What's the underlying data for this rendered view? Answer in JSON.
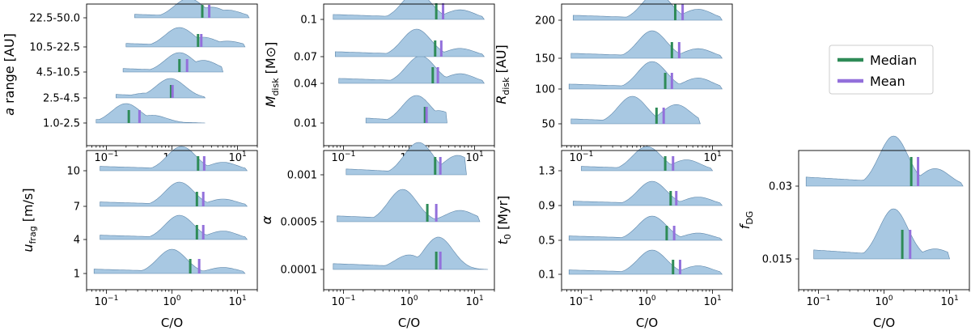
{
  "chart_data": {
    "type": "ridgeline",
    "x_scale": "log",
    "xlim": [
      0.05,
      20
    ],
    "x_ticks": [
      {
        "v": 0.1,
        "b": "10",
        "e": "−1"
      },
      {
        "v": 1,
        "b": "10",
        "e": "0"
      },
      {
        "v": 10,
        "b": "10",
        "e": "1"
      }
    ],
    "xlabel": "C/O",
    "legend": {
      "position": "right",
      "median_label": "Median",
      "mean_label": "Mean",
      "median_color": "#2e8b57",
      "mean_color": "#9370db"
    },
    "ridge_color": "#a8c8e2",
    "panels": [
      {
        "id": "a-range",
        "ylabel": "a range [AU]",
        "yl_main": "a",
        "yl_rest": "range [AU]",
        "categories": [
          {
            "label": "1.0-2.5",
            "min": 0.07,
            "max": 3.2,
            "median": 0.22,
            "mean": 0.32,
            "peaks": [
              [
                0.2,
                1.0
              ],
              [
                0.5,
                0.4
              ]
            ]
          },
          {
            "label": "2.5-4.5",
            "min": 0.14,
            "max": 3.2,
            "median": 0.97,
            "mean": 1.02,
            "peaks": [
              [
                0.4,
                0.25
              ],
              [
                0.95,
                1.0
              ]
            ]
          },
          {
            "label": "4.5-10.5",
            "min": 0.18,
            "max": 6.0,
            "median": 1.3,
            "mean": 1.7,
            "peaks": [
              [
                1.3,
                1.0
              ],
              [
                3.0,
                0.6
              ]
            ]
          },
          {
            "label": "10.5-22.5",
            "min": 0.2,
            "max": 13,
            "median": 2.5,
            "mean": 2.8,
            "peaks": [
              [
                1.3,
                1.0
              ],
              [
                3.0,
                0.5
              ],
              [
                7.0,
                0.3
              ]
            ]
          },
          {
            "label": "22.5-50.0",
            "min": 0.27,
            "max": 15,
            "median": 2.9,
            "mean": 3.7,
            "peaks": [
              [
                1.8,
                1.0
              ],
              [
                4.0,
                0.55
              ],
              [
                7.0,
                0.4
              ]
            ]
          }
        ]
      },
      {
        "id": "mdisk",
        "ylabel": "Mdisk [M⊙]",
        "yl_main": "M",
        "yl_sub": "disk",
        "yl_rest": " [M⊙]",
        "categories": [
          {
            "label": "0.01",
            "min": 0.22,
            "max": 3.8,
            "median": 1.75,
            "mean": 1.85,
            "peaks": [
              [
                1.3,
                1.0
              ],
              [
                2.8,
                0.45
              ]
            ]
          },
          {
            "label": "0.04",
            "min": 0.085,
            "max": 14,
            "median": 2.3,
            "mean": 2.75,
            "peaks": [
              [
                1.5,
                1.0
              ],
              [
                6.0,
                0.35
              ]
            ]
          },
          {
            "label": "0.07",
            "min": 0.075,
            "max": 14,
            "median": 2.5,
            "mean": 3.1,
            "peaks": [
              [
                1.3,
                1.0
              ],
              [
                6.0,
                0.3
              ]
            ]
          },
          {
            "label": "0.1",
            "min": 0.07,
            "max": 14,
            "median": 2.6,
            "mean": 3.3,
            "peaks": [
              [
                1.3,
                1.0
              ],
              [
                6.0,
                0.35
              ]
            ]
          }
        ]
      },
      {
        "id": "rdisk",
        "ylabel": "Rdisk [AU]",
        "yl_main": "R",
        "yl_sub": "disk",
        "yl_rest": " [AU]",
        "categories": [
          {
            "label": "50",
            "min": 0.07,
            "max": 6.5,
            "median": 1.4,
            "mean": 1.8,
            "peaks": [
              [
                0.6,
                1.0
              ],
              [
                2.8,
                0.7
              ]
            ]
          },
          {
            "label": "100",
            "min": 0.065,
            "max": 14,
            "median": 1.9,
            "mean": 2.4,
            "peaks": [
              [
                1.2,
                1.0
              ],
              [
                6.0,
                0.4
              ]
            ]
          },
          {
            "label": "150",
            "min": 0.07,
            "max": 14,
            "median": 2.4,
            "mean": 3.1,
            "peaks": [
              [
                1.2,
                1.0
              ],
              [
                6.0,
                0.35
              ]
            ]
          },
          {
            "label": "200",
            "min": 0.075,
            "max": 14,
            "median": 2.7,
            "mean": 3.5,
            "peaks": [
              [
                1.4,
                1.0
              ],
              [
                6.0,
                0.4
              ]
            ]
          }
        ]
      },
      {
        "id": "ufrag",
        "ylabel": "ufrag [m/s]",
        "yl_main": "u",
        "yl_sub": "frag",
        "yl_rest": " [m/s]",
        "categories": [
          {
            "label": "1",
            "min": 0.065,
            "max": 13,
            "median": 1.9,
            "mean": 2.6,
            "peaks": [
              [
                1.0,
                1.0
              ],
              [
                6.0,
                0.25
              ]
            ]
          },
          {
            "label": "4",
            "min": 0.08,
            "max": 14,
            "median": 2.4,
            "mean": 3.0,
            "peaks": [
              [
                1.3,
                1.0
              ],
              [
                6.0,
                0.35
              ]
            ]
          },
          {
            "label": "7",
            "min": 0.08,
            "max": 14,
            "median": 2.4,
            "mean": 3.0,
            "peaks": [
              [
                1.3,
                1.0
              ],
              [
                6.0,
                0.3
              ]
            ]
          },
          {
            "label": "10",
            "min": 0.08,
            "max": 14,
            "median": 2.5,
            "mean": 3.1,
            "peaks": [
              [
                1.4,
                1.0
              ],
              [
                6.0,
                0.35
              ]
            ]
          }
        ]
      },
      {
        "id": "alpha",
        "ylabel": "α",
        "yl_main": "α",
        "yl_rest": "",
        "categories": [
          {
            "label": "0.0001",
            "min": 0.07,
            "max": 16,
            "median": 2.6,
            "mean": 3.0,
            "peaks": [
              [
                1.0,
                0.45
              ],
              [
                2.8,
                1.0
              ]
            ]
          },
          {
            "label": "0.0005",
            "min": 0.08,
            "max": 12,
            "median": 1.9,
            "mean": 2.6,
            "peaks": [
              [
                0.8,
                1.0
              ],
              [
                6.0,
                0.35
              ]
            ]
          },
          {
            "label": "0.001",
            "min": 0.11,
            "max": 7.5,
            "median": 2.5,
            "mean": 3.0,
            "peaks": [
              [
                1.4,
                1.0
              ],
              [
                5.5,
                0.6
              ]
            ]
          }
        ]
      },
      {
        "id": "t0",
        "ylabel": "t0 [Myr]",
        "yl_main": "t",
        "yl_sub": "0",
        "yl_rest": " [Myr]",
        "categories": [
          {
            "label": "0.1",
            "min": 0.065,
            "max": 14,
            "median": 2.5,
            "mean": 3.2,
            "peaks": [
              [
                1.2,
                1.0
              ],
              [
                6.0,
                0.35
              ]
            ]
          },
          {
            "label": "0.5",
            "min": 0.065,
            "max": 14,
            "median": 2.0,
            "mean": 2.6,
            "peaks": [
              [
                1.2,
                1.0
              ],
              [
                6.0,
                0.3
              ]
            ]
          },
          {
            "label": "0.9",
            "min": 0.075,
            "max": 14,
            "median": 2.3,
            "mean": 2.8,
            "peaks": [
              [
                1.2,
                1.0
              ],
              [
                6.0,
                0.35
              ]
            ]
          },
          {
            "label": "1.3",
            "min": 0.1,
            "max": 10,
            "median": 1.9,
            "mean": 2.5,
            "peaks": [
              [
                1.0,
                1.0
              ],
              [
                4.0,
                0.45
              ]
            ]
          }
        ]
      },
      {
        "id": "fdg",
        "ylabel": "fDG",
        "yl_main": "f",
        "yl_sub": "DG",
        "yl_rest": "",
        "categories": [
          {
            "label": "0.015",
            "min": 0.085,
            "max": 10,
            "median": 1.9,
            "mean": 2.5,
            "peaks": [
              [
                1.4,
                1.0
              ],
              [
                6.0,
                0.2
              ]
            ]
          },
          {
            "label": "0.03",
            "min": 0.065,
            "max": 16,
            "median": 2.6,
            "mean": 3.3,
            "peaks": [
              [
                1.4,
                1.0
              ],
              [
                6.0,
                0.35
              ]
            ]
          }
        ]
      }
    ]
  }
}
